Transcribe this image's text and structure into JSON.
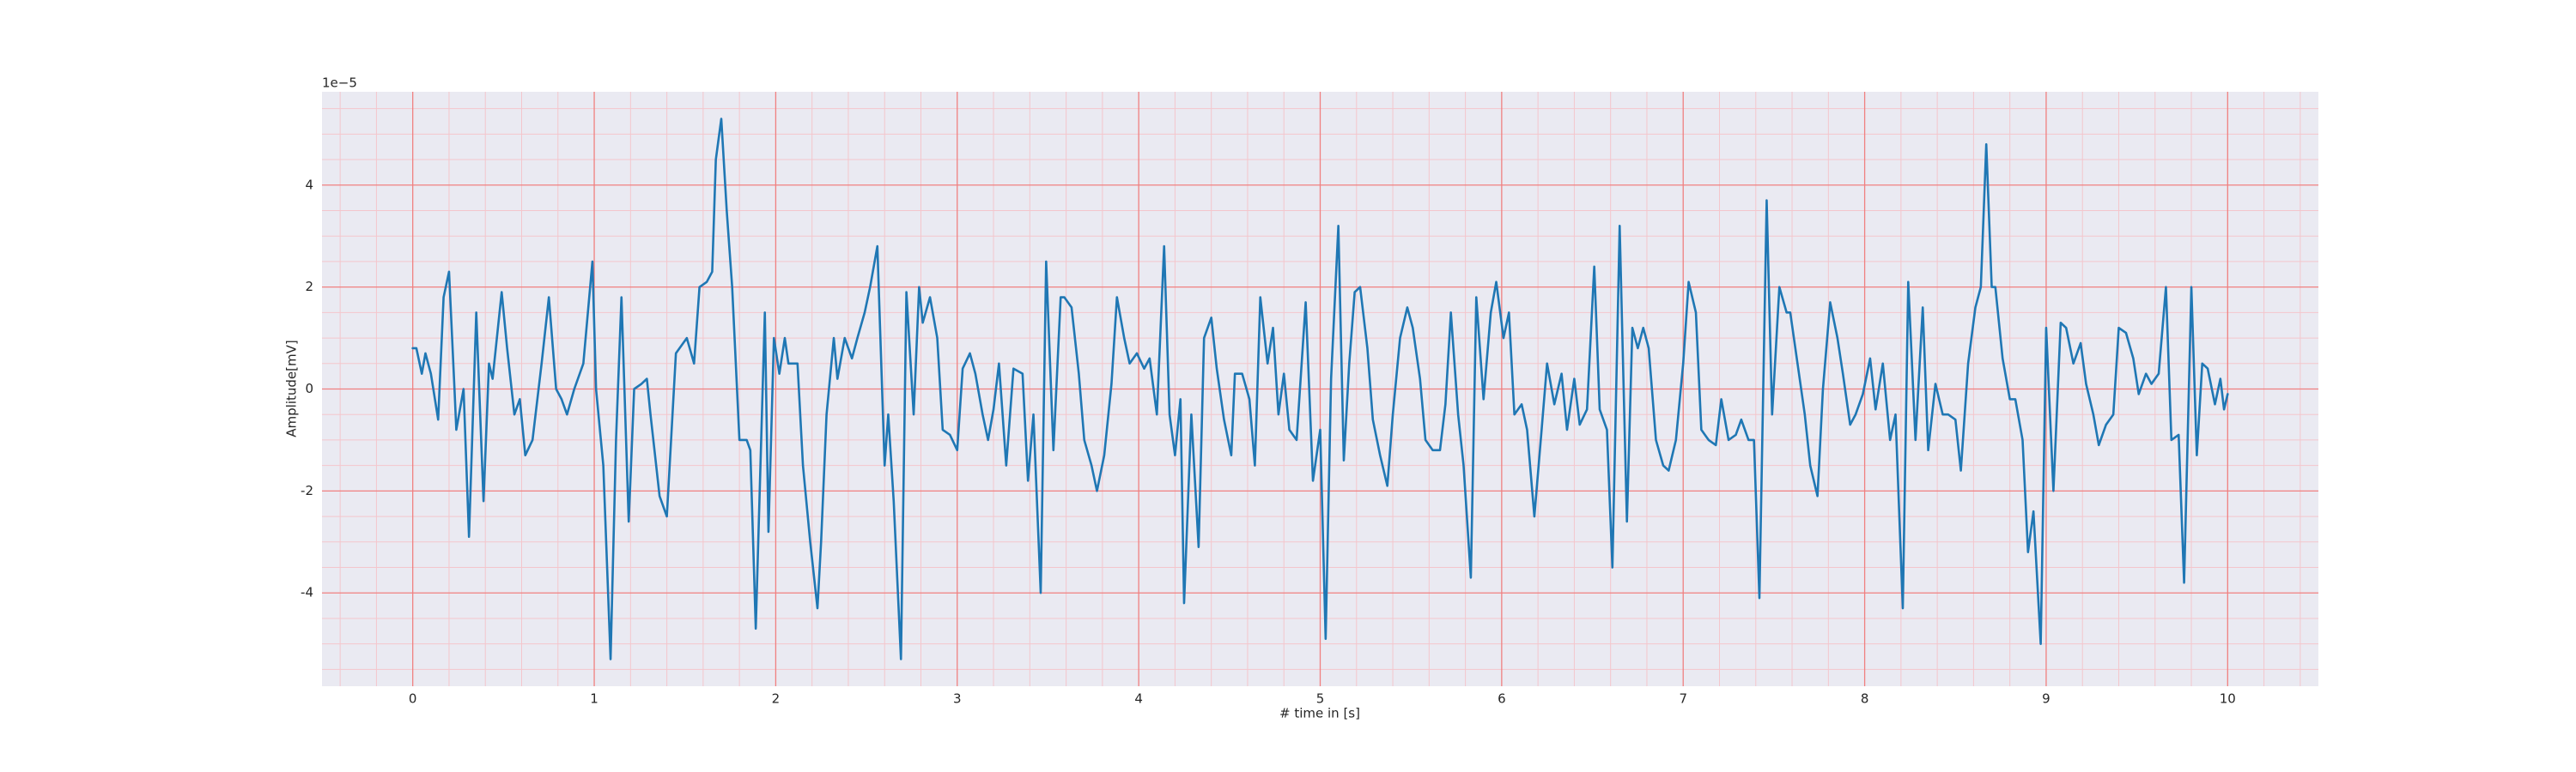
{
  "chart_data": {
    "type": "line",
    "xlabel": "# time in [s]",
    "ylabel": "Amplitude[mV]",
    "y_offset_label": "1e−5",
    "color": "#1f77b4",
    "background": "#eaeaf2",
    "grid": true,
    "grid_color": "#f08080",
    "minor_grid_color": "#f4c6cc",
    "xlim": [
      -0.5,
      10.5
    ],
    "ylim": [
      -5.83,
      5.83
    ],
    "xticks": [
      0,
      1,
      2,
      3,
      4,
      5,
      6,
      7,
      8,
      9,
      10
    ],
    "yticks": [
      -4,
      -2,
      0,
      2,
      4
    ],
    "xminorticks": [
      -0.4,
      -0.2,
      0.2,
      0.4,
      0.6,
      0.8,
      1.2,
      1.4,
      1.6,
      1.8,
      2.2,
      2.4,
      2.6,
      2.8,
      3.2,
      3.4,
      3.6,
      3.8,
      4.2,
      4.4,
      4.6,
      4.8,
      5.2,
      5.4,
      5.6,
      5.8,
      6.2,
      6.4,
      6.6,
      6.8,
      7.2,
      7.4,
      7.6,
      7.8,
      8.2,
      8.4,
      8.6,
      8.8,
      9.2,
      9.4,
      9.6,
      9.8,
      10.2,
      10.4
    ],
    "yminorticks": [
      -5.5,
      -5,
      -4.5,
      -3.5,
      -3,
      -2.5,
      -1.5,
      -1,
      -0.5,
      0.5,
      1,
      1.5,
      2.5,
      3,
      3.5,
      4.5,
      5,
      5.5
    ],
    "x": [
      0,
      0.02,
      0.05,
      0.07,
      0.1,
      0.14,
      0.17,
      0.2,
      0.23,
      0.24,
      0.28,
      0.31,
      0.35,
      0.39,
      0.42,
      0.44,
      0.49,
      0.52,
      0.56,
      0.59,
      0.62,
      0.66,
      0.71,
      0.75,
      0.79,
      0.82,
      0.85,
      0.89,
      0.94,
      0.99,
      1.01,
      1.05,
      1.09,
      1.12,
      1.15,
      1.19,
      1.22,
      1.26,
      1.29,
      1.31,
      1.36,
      1.4,
      1.45,
      1.51,
      1.55,
      1.58,
      1.62,
      1.65,
      1.67,
      1.7,
      1.73,
      1.76,
      1.8,
      1.84,
      1.86,
      1.89,
      1.94,
      1.96,
      1.99,
      2.02,
      2.05,
      2.07,
      2.12,
      2.15,
      2.19,
      2.23,
      2.25,
      2.28,
      2.32,
      2.34,
      2.38,
      2.42,
      2.45,
      2.49,
      2.52,
      2.56,
      2.6,
      2.62,
      2.65,
      2.69,
      2.72,
      2.76,
      2.79,
      2.81,
      2.85,
      2.89,
      2.92,
      2.96,
      3.0,
      3.03,
      3.07,
      3.1,
      3.14,
      3.17,
      3.2,
      3.23,
      3.27,
      3.31,
      3.36,
      3.39,
      3.42,
      3.46,
      3.49,
      3.53,
      3.57,
      3.59,
      3.63,
      3.67,
      3.7,
      3.74,
      3.77,
      3.81,
      3.85,
      3.88,
      3.92,
      3.95,
      3.99,
      4.03,
      4.06,
      4.1,
      4.14,
      4.17,
      4.2,
      4.23,
      4.25,
      4.29,
      4.33,
      4.36,
      4.4,
      4.43,
      4.47,
      4.51,
      4.53,
      4.57,
      4.61,
      4.64,
      4.67,
      4.71,
      4.74,
      4.77,
      4.8,
      4.83,
      4.87,
      4.92,
      4.96,
      5.0,
      5.03,
      5.06,
      5.1,
      5.13,
      5.16,
      5.19,
      5.22,
      5.26,
      5.29,
      5.33,
      5.37,
      5.4,
      5.44,
      5.48,
      5.51,
      5.55,
      5.58,
      5.62,
      5.66,
      5.69,
      5.72,
      5.76,
      5.79,
      5.83,
      5.86,
      5.9,
      5.94,
      5.97,
      6.01,
      6.04,
      6.07,
      6.11,
      6.14,
      6.18,
      6.22,
      6.25,
      6.29,
      6.33,
      6.36,
      6.4,
      6.43,
      6.47,
      6.51,
      6.54,
      6.58,
      6.61,
      6.65,
      6.69,
      6.72,
      6.75,
      6.78,
      6.81,
      6.85,
      6.89,
      6.92,
      6.96,
      7.0,
      7.03,
      7.07,
      7.1,
      7.14,
      7.18,
      7.21,
      7.25,
      7.29,
      7.32,
      7.36,
      7.39,
      7.42,
      7.46,
      7.49,
      7.53,
      7.57,
      7.59,
      7.63,
      7.67,
      7.7,
      7.74,
      7.77,
      7.81,
      7.85,
      7.88,
      7.92,
      7.95,
      7.99,
      8.03,
      8.06,
      8.1,
      8.14,
      8.17,
      8.21,
      8.24,
      8.28,
      8.32,
      8.35,
      8.39,
      8.43,
      8.46,
      8.5,
      8.53,
      8.57,
      8.61,
      8.64,
      8.67,
      8.7,
      8.72,
      8.76,
      8.8,
      8.83,
      8.87,
      8.9,
      8.93,
      8.97,
      9.0,
      9.04,
      9.08,
      9.11,
      9.15,
      9.19,
      9.22,
      9.26,
      9.29,
      9.33,
      9.37,
      9.4,
      9.44,
      9.48,
      9.51,
      9.55,
      9.58,
      9.62,
      9.66,
      9.69,
      9.73,
      9.76,
      9.8,
      9.83,
      9.86,
      9.89,
      9.93,
      9.96,
      9.98,
      10.0
    ],
    "values": [
      0.8,
      0.8,
      0.3,
      0.7,
      0.3,
      -0.6,
      1.8,
      2.3,
      0,
      -0.8,
      0.0,
      -2.9,
      1.5,
      -2.2,
      0.5,
      0.2,
      1.9,
      0.8,
      -0.5,
      -0.2,
      -1.3,
      -1.0,
      0.5,
      1.8,
      0,
      -0.2,
      -0.5,
      0,
      0.5,
      2.5,
      0,
      -1.5,
      -5.3,
      -1,
      1.8,
      -2.6,
      0,
      0.1,
      0.2,
      -0.5,
      -2.1,
      -2.5,
      0.7,
      1.0,
      0.5,
      2.0,
      2.1,
      2.3,
      4.5,
      5.3,
      3.5,
      2.0,
      -1.0,
      -1.0,
      -1.2,
      -4.7,
      1.5,
      -2.8,
      1.0,
      0.3,
      1.0,
      0.5,
      0.5,
      -1.5,
      -3,
      -4.3,
      -3,
      -0.5,
      1.0,
      0.2,
      1.0,
      0.6,
      1.0,
      1.5,
      2.0,
      2.8,
      -1.5,
      -0.5,
      -2.2,
      -5.3,
      1.9,
      -0.5,
      2.0,
      1.3,
      1.8,
      1.0,
      -0.8,
      -0.9,
      -1.2,
      0.4,
      0.7,
      0.3,
      -0.5,
      -1.0,
      -0.4,
      0.5,
      -1.5,
      0.4,
      0.3,
      -1.8,
      -0.5,
      -4.0,
      2.5,
      -1.2,
      1.8,
      1.8,
      1.6,
      0.3,
      -1.0,
      -1.5,
      -2.0,
      -1.3,
      0.1,
      1.8,
      1.0,
      0.5,
      0.7,
      0.4,
      0.6,
      -0.5,
      2.8,
      -0.5,
      -1.3,
      -0.2,
      -4.2,
      -0.5,
      -3.1,
      1.0,
      1.4,
      0.4,
      -0.6,
      -1.3,
      0.3,
      0.3,
      -0.2,
      -1.5,
      1.8,
      0.5,
      1.2,
      -0.5,
      0.3,
      -0.8,
      -1.0,
      1.7,
      -1.8,
      -0.8,
      -4.9,
      0.2,
      3.2,
      -1.4,
      0.5,
      1.9,
      2.0,
      0.8,
      -0.6,
      -1.3,
      -1.9,
      -0.5,
      1.0,
      1.6,
      1.2,
      0.2,
      -1.0,
      -1.2,
      -1.2,
      -0.3,
      1.5,
      -0.5,
      -1.5,
      -3.7,
      1.8,
      -0.2,
      1.5,
      2.1,
      1.0,
      1.5,
      -0.5,
      -0.3,
      -0.8,
      -2.5,
      -0.8,
      0.5,
      -0.3,
      0.3,
      -0.8,
      0.2,
      -0.7,
      -0.4,
      2.4,
      -0.4,
      -0.8,
      -3.5,
      3.2,
      -2.6,
      1.2,
      0.8,
      1.2,
      0.8,
      -1.0,
      -1.5,
      -1.6,
      -1.0,
      0.5,
      2.1,
      1.5,
      -0.8,
      -1.0,
      -1.1,
      -0.2,
      -1.0,
      -0.9,
      -0.6,
      -1.0,
      -1.0,
      -4.1,
      3.7,
      -0.5,
      2.0,
      1.5,
      1.5,
      0.5,
      -0.5,
      -1.5,
      -2.1,
      0.0,
      1.7,
      1.0,
      0.3,
      -0.7,
      -0.5,
      -0.1,
      0.6,
      -0.4,
      0.5,
      -1.0,
      -0.5,
      -4.3,
      2.1,
      -1.0,
      1.6,
      -1.2,
      0.1,
      -0.5,
      -0.5,
      -0.6,
      -1.6,
      0.5,
      1.6,
      2.0,
      4.8,
      2.0,
      2.0,
      0.6,
      -0.2,
      -0.2,
      -1.0,
      -3.2,
      -2.4,
      -5.0,
      1.2,
      -2.0,
      1.3,
      1.2,
      0.5,
      0.9,
      0.1,
      -0.5,
      -1.1,
      -0.7,
      -0.5,
      1.2,
      1.1,
      0.6,
      -0.1,
      0.3,
      0.1,
      0.3,
      2.0,
      -1.0,
      -0.9,
      -3.8,
      2.0,
      -1.3,
      0.5,
      0.4,
      -0.3,
      0.2,
      -0.4,
      -0.1
    ]
  }
}
